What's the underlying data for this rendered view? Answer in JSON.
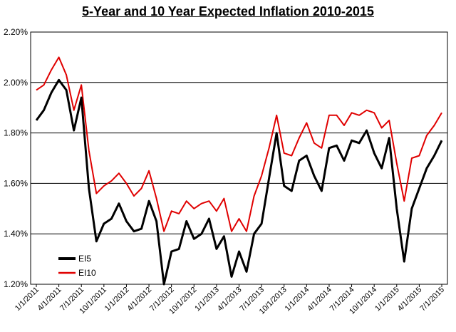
{
  "chart_data": {
    "type": "line",
    "title": "5-Year and 10 Year Expected Inflation 2010-2015",
    "xlabel": "",
    "ylabel": "",
    "ylim": [
      1.2,
      2.2
    ],
    "yticks": [
      "1.20%",
      "1.40%",
      "1.60%",
      "1.80%",
      "2.00%",
      "2.20%"
    ],
    "xticks": [
      "1/1/2011",
      "4/1/2011",
      "7/1/2011",
      "10/1/2011",
      "1/1/2012",
      "4/1/2012",
      "7/1/2012",
      "10/1/2012",
      "1/1/2013",
      "4/1/2013",
      "7/1/2013",
      "10/1/2013",
      "1/1/2014",
      "4/1/2014",
      "7/1/2014",
      "10/1/2014",
      "1/1/2015",
      "4/1/2015",
      "7/1/2015"
    ],
    "grid": "horizontal",
    "legend": "bottom-left",
    "series": [
      {
        "name": "EI5",
        "color": "#000000",
        "values": [
          1.85,
          1.89,
          1.96,
          2.01,
          1.97,
          1.81,
          1.94,
          1.58,
          1.37,
          1.44,
          1.46,
          1.52,
          1.45,
          1.41,
          1.42,
          1.53,
          1.45,
          1.2,
          1.33,
          1.34,
          1.45,
          1.38,
          1.4,
          1.46,
          1.34,
          1.39,
          1.23,
          1.33,
          1.25,
          1.4,
          1.44,
          1.62,
          1.8,
          1.59,
          1.57,
          1.69,
          1.71,
          1.63,
          1.57,
          1.74,
          1.75,
          1.69,
          1.77,
          1.76,
          1.81,
          1.72,
          1.66,
          1.78,
          1.5,
          1.29,
          1.5,
          1.58,
          1.66,
          1.71,
          1.77
        ]
      },
      {
        "name": "EI10",
        "color": "#e00000",
        "values": [
          1.97,
          1.99,
          2.05,
          2.1,
          2.03,
          1.89,
          1.99,
          1.73,
          1.56,
          1.59,
          1.61,
          1.64,
          1.6,
          1.55,
          1.58,
          1.65,
          1.54,
          1.41,
          1.49,
          1.48,
          1.53,
          1.5,
          1.52,
          1.53,
          1.49,
          1.54,
          1.41,
          1.46,
          1.41,
          1.55,
          1.63,
          1.74,
          1.87,
          1.72,
          1.71,
          1.78,
          1.84,
          1.76,
          1.74,
          1.87,
          1.87,
          1.83,
          1.88,
          1.87,
          1.89,
          1.88,
          1.82,
          1.85,
          1.68,
          1.53,
          1.7,
          1.71,
          1.79,
          1.83,
          1.88
        ]
      }
    ]
  }
}
